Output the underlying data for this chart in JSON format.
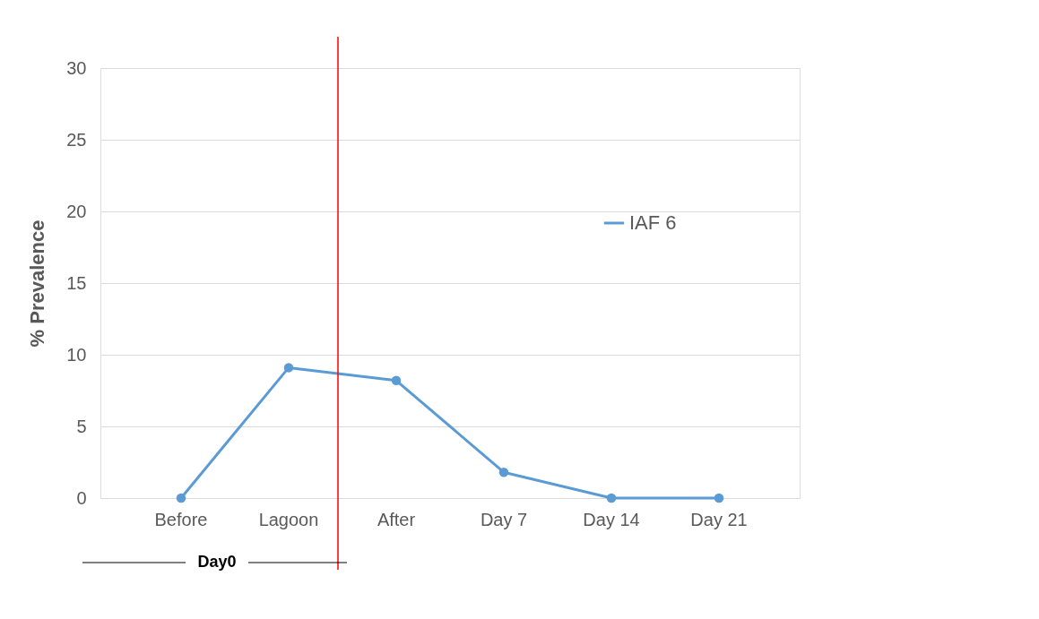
{
  "chart_data": {
    "type": "line",
    "ylabel": "% Prevalence",
    "categories": [
      "Before",
      "Lagoon",
      "After",
      "Day 7",
      "Day 14",
      "Day 21"
    ],
    "series": [
      {
        "name": "IAF 6",
        "color": "#5b9bd5",
        "values": [
          0,
          9.1,
          8.2,
          1.8,
          0,
          0
        ]
      }
    ],
    "ylim": [
      0,
      30
    ],
    "yticks": [
      0,
      5,
      10,
      15,
      20,
      25,
      30
    ],
    "grid": "y",
    "legend": "top right",
    "marker": "circle",
    "line_style": "solid",
    "ref_lines": [
      {
        "axis": "x",
        "value": "After",
        "color": "#ff0000"
      }
    ],
    "annotations": [
      "Day0"
    ]
  }
}
